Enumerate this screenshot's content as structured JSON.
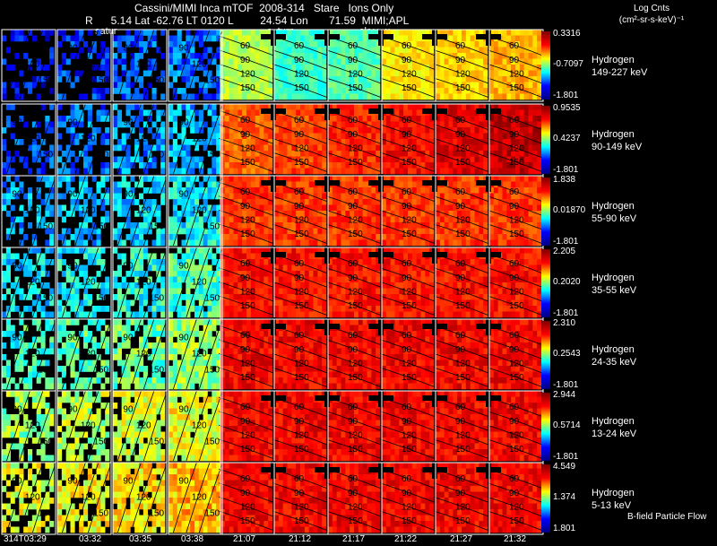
{
  "header": {
    "title": "Cassini/MIMI Inca mTOF  2008-314   Stare   Ions Only",
    "subtitle": "R      5.14 Lat -62.76 LT 0120 L         24.54 Lon       71.59  MIMI;APL",
    "units_line1": "Log Cnts",
    "units_line2": "(cm²-sr-s-keV)⁻¹"
  },
  "overlay_labels": [
    "satur",
    "saturn",
    "sky-vw"
  ],
  "contour_labels": [
    "60",
    "90",
    "120",
    "150"
  ],
  "time_ticks": [
    "314T03:29",
    "03:32",
    "03:35",
    "03:38",
    "21:07",
    "21:12",
    "21:17",
    "21:22",
    "21:27",
    "21:32"
  ],
  "rows": [
    {
      "species": "Hydrogen",
      "range": "149-227 keV",
      "max": "0.3316",
      "mid": "-0.7097",
      "min": "-1.801"
    },
    {
      "species": "Hydrogen",
      "range": "90-149 keV",
      "max": "0.9535",
      "mid": "0.4237",
      "min": "-1.801"
    },
    {
      "species": "Hydrogen",
      "range": "55-90 keV",
      "max": "1.838",
      "mid": "0.01870",
      "min": "-1.801"
    },
    {
      "species": "Hydrogen",
      "range": "35-55 keV",
      "max": "2.205",
      "mid": "0.2020",
      "min": "-1.801"
    },
    {
      "species": "Hydrogen",
      "range": "24-35 keV",
      "max": "2.310",
      "mid": "0.2543",
      "min": "-1.801"
    },
    {
      "species": "Hydrogen",
      "range": "13-24 keV",
      "max": "2.944",
      "mid": "0.5714",
      "min": "-1.801"
    },
    {
      "species": "Hydrogen",
      "range": "5-13 keV",
      "max": "4.549",
      "mid": "1.374",
      "min": "1.801"
    }
  ],
  "footer_note": "B-field Particle Flow"
}
